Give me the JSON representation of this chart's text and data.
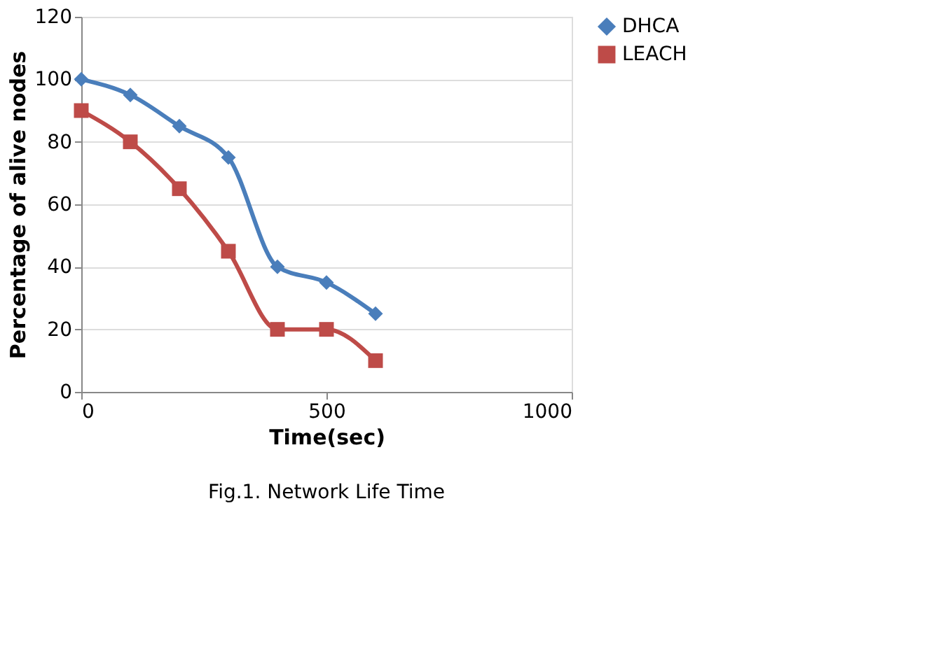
{
  "chart_data": {
    "type": "line",
    "xlabel": "Time(sec)",
    "ylabel": "Percentage of alive nodes",
    "x": [
      0,
      100,
      200,
      300,
      400,
      500,
      600
    ],
    "series": [
      {
        "name": "DHCA",
        "color": "#4a7ebb",
        "marker": "diamond",
        "values": [
          100,
          95,
          85,
          75,
          40,
          35,
          25
        ]
      },
      {
        "name": "LEACH",
        "color": "#be4b48",
        "marker": "square",
        "values": [
          90,
          80,
          65,
          45,
          20,
          20,
          10
        ]
      }
    ],
    "xlim": [
      0,
      1000
    ],
    "xticks": [
      0,
      500,
      1000
    ],
    "ylim": [
      0,
      120
    ],
    "yticks": [
      0,
      20,
      40,
      60,
      80,
      100,
      120
    ],
    "grid": "y",
    "legend": "right",
    "line_style": "solid",
    "annotations": [
      "Fig.1. Network Life Time"
    ]
  }
}
